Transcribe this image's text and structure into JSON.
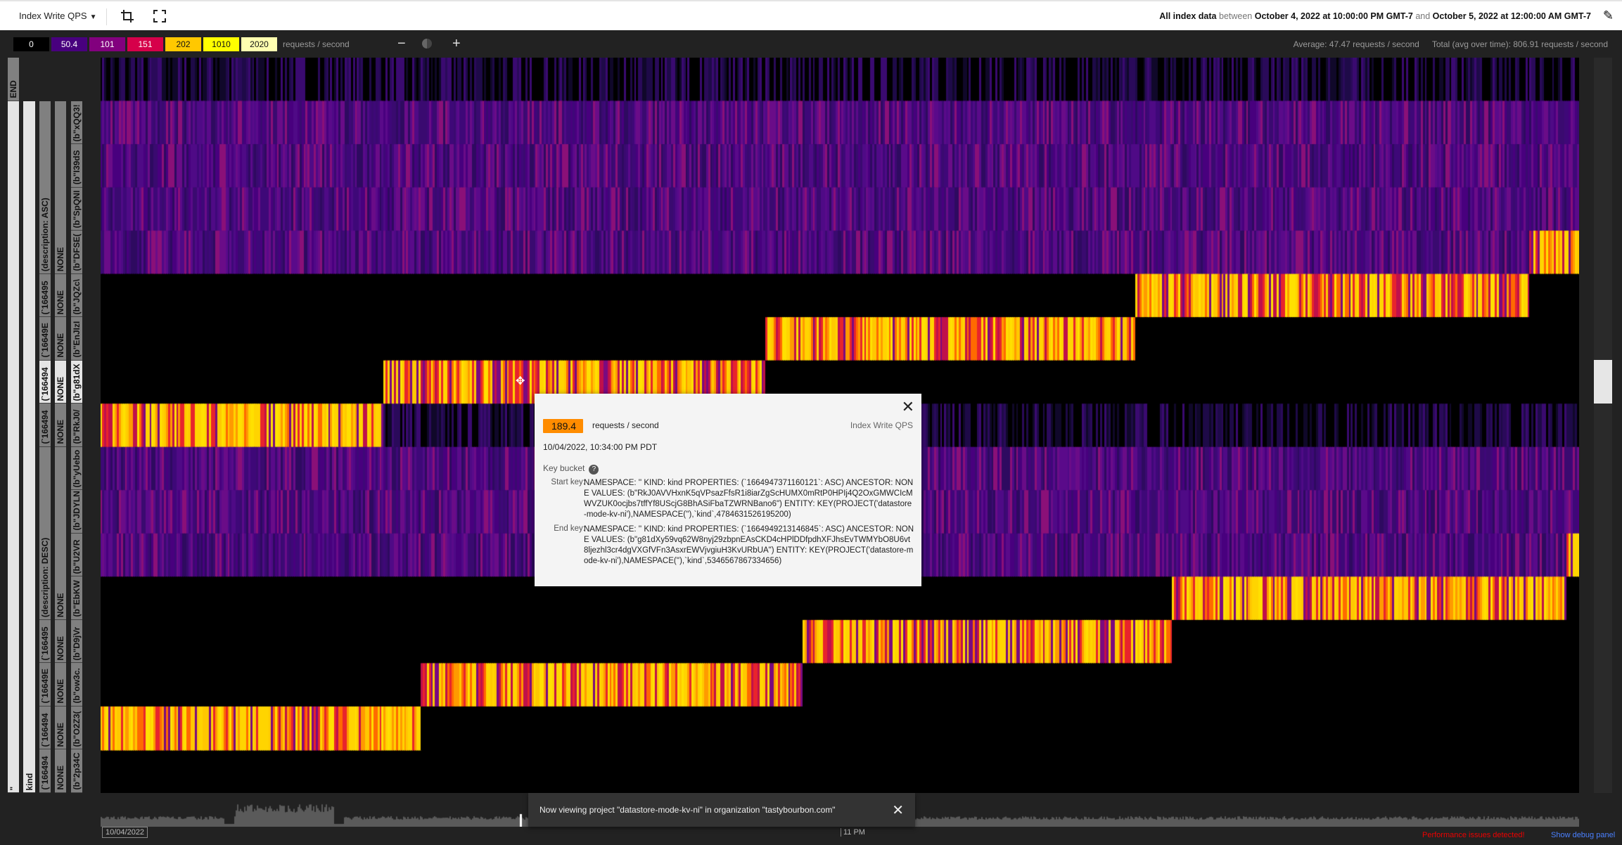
{
  "toolbar": {
    "metric": "Index Write QPS",
    "crop_icon": "crop-icon",
    "fullscreen_icon": "fullscreen-icon",
    "range_scope": "All index data",
    "between": "between",
    "start": "October 4, 2022 at 10:00:00 PM GMT-7",
    "and": "and",
    "end": "October 5, 2022 at 12:00:00 AM GMT-7",
    "edit_icon": "pencil-icon"
  },
  "legend": {
    "scale": [
      {
        "label": "0",
        "color": "#000000",
        "text": "#ffffff"
      },
      {
        "label": "50.4",
        "color": "#48007e",
        "text": "#ffffff"
      },
      {
        "label": "101",
        "color": "#82007e",
        "text": "#ffffff"
      },
      {
        "label": "151",
        "color": "#d6004a",
        "text": "#ffffff"
      },
      {
        "label": "202",
        "color": "#ffc800",
        "text": "#111111"
      },
      {
        "label": "1010",
        "color": "#ffff00",
        "text": "#111111"
      },
      {
        "label": "2020",
        "color": "#ffffb0",
        "text": "#111111"
      }
    ],
    "units": "requests / second",
    "zoom_out": "−",
    "contrast_icon": "contrast-icon",
    "zoom_in": "+",
    "average": "Average: 47.47 requests / second",
    "total": "Total (avg over time): 806.91 requests / second"
  },
  "heatmap": {
    "time_start": "22:00",
    "time_end": "24:00",
    "rows": [
      {
        "base": "dark",
        "hot": null
      },
      {
        "base": "purple",
        "hot": null
      },
      {
        "base": "purple",
        "hot": null
      },
      {
        "base": "purple",
        "hot": null
      },
      {
        "base": "purple",
        "hot": [
          "23:56",
          "24:00"
        ]
      },
      {
        "base": "black",
        "hot": [
          "23:24",
          "23:56"
        ]
      },
      {
        "base": "black",
        "hot": [
          "22:54",
          "23:24"
        ]
      },
      {
        "base": "black",
        "hot": [
          "22:23",
          "22:54"
        ]
      },
      {
        "base": "dark",
        "hot": [
          "22:00",
          "22:23"
        ]
      },
      {
        "base": "purple",
        "hot": null
      },
      {
        "base": "purple",
        "hot": null
      },
      {
        "base": "purple",
        "hot": [
          "23:59",
          "24:00"
        ]
      },
      {
        "base": "black",
        "hot": [
          "23:27",
          "23:59"
        ]
      },
      {
        "base": "black",
        "hot": [
          "22:57",
          "23:27"
        ]
      },
      {
        "base": "black",
        "hot": [
          "22:26",
          "22:57"
        ]
      },
      {
        "base": "black",
        "hot": [
          "22:00",
          "22:26"
        ]
      }
    ]
  },
  "keys": {
    "end": "END",
    "col1": [
      {
        "label": "\"",
        "rows": 16
      }
    ],
    "col2": [
      {
        "label": "kind",
        "rows": 16
      }
    ],
    "col3": [
      {
        "label": "(description: ASC)",
        "rows": 4
      },
      {
        "label": "(`166495",
        "rows": 1
      },
      {
        "label": "(`16649E",
        "rows": 1
      },
      {
        "label": "(`166494",
        "rows": 1,
        "hl": true
      },
      {
        "label": "(`166494",
        "rows": 1
      },
      {
        "label": "(description: DESC)",
        "rows": 4
      },
      {
        "label": "(`166495",
        "rows": 1
      },
      {
        "label": "(`16649E",
        "rows": 1
      },
      {
        "label": "(`166494",
        "rows": 1
      },
      {
        "label": "(`166494",
        "rows": 1
      }
    ],
    "col4": [
      {
        "label": "NONE",
        "rows": 4
      },
      {
        "label": "NONE",
        "rows": 1
      },
      {
        "label": "NONE",
        "rows": 1
      },
      {
        "label": "NONE",
        "rows": 1,
        "hl": true
      },
      {
        "label": "NONE",
        "rows": 1
      },
      {
        "label": "NONE",
        "rows": 4
      },
      {
        "label": "NONE",
        "rows": 1
      },
      {
        "label": "NONE",
        "rows": 1
      },
      {
        "label": "NONE",
        "rows": 1
      },
      {
        "label": "NONE",
        "rows": 1
      }
    ],
    "col5": [
      {
        "label": "(b\"xQQ3!",
        "rows": 1
      },
      {
        "label": "(b\"I39dS",
        "rows": 1
      },
      {
        "label": "(b\"SpQNI",
        "rows": 1
      },
      {
        "label": "(b\"DFSE(",
        "rows": 1
      },
      {
        "label": "(b\"JQZc\\",
        "rows": 1
      },
      {
        "label": "(b\"EnJIzI",
        "rows": 1
      },
      {
        "label": "(b\"g81dX",
        "rows": 1,
        "hl": true
      },
      {
        "label": "(b\"RkJ0/",
        "rows": 1
      },
      {
        "label": "(b\"yUebo",
        "rows": 1
      },
      {
        "label": "(b\"JDYLN",
        "rows": 1
      },
      {
        "label": "(b\"U2VR",
        "rows": 1
      },
      {
        "label": "(b\"EbKW",
        "rows": 1
      },
      {
        "label": "(b\"D9jVr",
        "rows": 1
      },
      {
        "label": "(b\"ow3c.",
        "rows": 1
      },
      {
        "label": "(b\"O2Z3(",
        "rows": 1
      },
      {
        "label": "(b\"2p34C",
        "rows": 1
      }
    ]
  },
  "tooltip": {
    "value": "189.4",
    "units": "requests / second",
    "metric": "Index Write QPS",
    "time": "10/04/2022, 10:34:00 PM PDT",
    "key_bucket": "Key bucket",
    "help": "?",
    "start_label": "Start key:",
    "start_key": "NAMESPACE: '' KIND: kind PROPERTIES: (`1664947371160121`: ASC) ANCESTOR: NONE VALUES: (b\"RkJ0AVVHxnK5qVPsazFfsR1i8iarZgScHUMX0mRtP0HPIj4Q2OxGMWCIcMWVZUK0ocjbs7tffYf8UScjG8BhASiFbaTZWRNBano6\") ENTITY: KEY(PROJECT('datastore-mode-kv-ni'),NAMESPACE(''),`kind`,4784631526195200)",
    "end_label": "End key:",
    "end_key": "NAMESPACE: '' KIND: kind PROPERTIES: (`1664949213146845`: ASC) ANCESTOR: NONE VALUES: (b\"g81dXy59vq62W8nyj29zbpnEAsCKD4cHPlDDfpdhXFJhsEvTWMYbO8U6vt8ljezhl3cr4dgVXGfVFn3AsxrEWVjvgiuH3KvURbUA\") ENTITY: KEY(PROJECT('datastore-mode-kv-ni'),NAMESPACE(''),`kind`,5346567867334656)",
    "close": "✕"
  },
  "toast": {
    "text": "Now viewing project \"datastore-mode-kv-ni\" in organization \"tastybourbon.com\"",
    "close": "✕"
  },
  "timeline": {
    "date": "10/04/2022",
    "tick": "11 PM"
  },
  "footer": {
    "perf": "Performance issues detected!",
    "debug": "Show debug panel"
  }
}
